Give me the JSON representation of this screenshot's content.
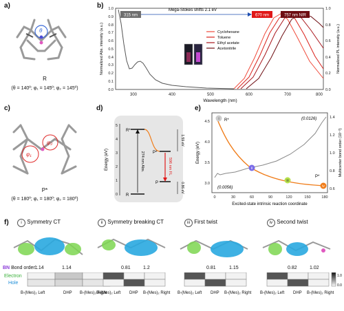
{
  "panels": {
    "a": {
      "label": "a)",
      "conf": "R",
      "params": "(θ = 140º; φ₁ = 145º; φ₂ = 145º)",
      "theta": "θ"
    },
    "b": {
      "label": "b)",
      "ylabel_left": "Normalized Abs. intensity (a.u.)",
      "ylabel_right": "Normalized PL intensity (a.u.)",
      "xlabel": "Wavelength (nm)",
      "xticks": [
        "300",
        "400",
        "500",
        "600",
        "700",
        "800"
      ],
      "yticks": [
        "0.0",
        "0.1",
        "0.2",
        "0.3",
        "0.4",
        "0.5",
        "0.6",
        "0.7",
        "0.8",
        "0.9",
        "1.0"
      ],
      "tag_315": "315 nm",
      "tag_670": "670 nm",
      "tag_757": "757 nm NIR",
      "shift": "Mega-Stokes shifts 2.1 eV",
      "legend": [
        "Cyclohexane",
        "Toluene",
        "Ethyl acetate",
        "Acetonitrile"
      ],
      "legend_colors": [
        "#f04a3a",
        "#d9201a",
        "#a8141a",
        "#6e0d12"
      ]
    },
    "c": {
      "label": "c)",
      "conf": "P*",
      "params": "(θ = 180º; φ₁ = 180º; φ₂ = 180º)",
      "phi1": "φ₁",
      "phi2": "φ₂"
    },
    "d": {
      "label": "d)",
      "ylabel": "Energy (eV)",
      "yticks": [
        "0",
        "1",
        "2",
        "3",
        "4",
        "5"
      ],
      "R_star": "R*",
      "P_star": "P*",
      "P": "P",
      "R": "R",
      "e159": "1.59 eV",
      "e086": "0.86 eV",
      "abs_text": "274 nm Abs.",
      "fl_text": "596 nm FL"
    },
    "e": {
      "label": "e)",
      "ylabel": "Energy (eV)",
      "ylabel_right": "Multicenter bond order (10⁻²)",
      "xlabel": "Excited-state intrinsic reaction coordinate",
      "xticks": [
        "0",
        "30",
        "60",
        "90",
        "120",
        "150",
        "180"
      ],
      "yticks": [
        "3.0",
        "3.5",
        "4.0",
        "4.5"
      ],
      "yticks_right": [
        "0.6",
        "0.8",
        "1.0",
        "1.2",
        "1.4"
      ],
      "R_star": "R*",
      "P_star": "P*",
      "val_start": "(0.0056)",
      "val_end": "(0.0126)",
      "marks": [
        "i",
        "ii",
        "iii",
        "iv"
      ]
    },
    "f": {
      "label": "f)",
      "states": [
        {
          "num": "i",
          "title": "Symmetry CT",
          "bo_left": "1.14",
          "bo_right": "1.14"
        },
        {
          "num": "ii",
          "title": "Symmetry breaking CT",
          "bo_left": "0.81",
          "bo_right": "1.2"
        },
        {
          "num": "iii",
          "title": "First twist",
          "bo_left": "0.81",
          "bo_right": "1.15"
        },
        {
          "num": "iv",
          "title": "Second twist",
          "bo_left": "0.82",
          "bo_right": "1.02"
        }
      ],
      "bn_prefix": "BN",
      "bn_suffix": " Bond order :",
      "electron": "Electron",
      "hole": "Hole",
      "col_labels": [
        "B-(Mes)₂ Left",
        "DHP",
        "B-(Mes)₂ Right"
      ],
      "colorbar": [
        "1.0",
        "0.0"
      ]
    }
  },
  "colors": {
    "abs": "#555555",
    "pl_orange": "#f07d1a",
    "hole": "#29a9e0",
    "electron": "#7cd650",
    "bn_b": "#e05ac0",
    "bn_n": "#4c4cd8"
  }
}
